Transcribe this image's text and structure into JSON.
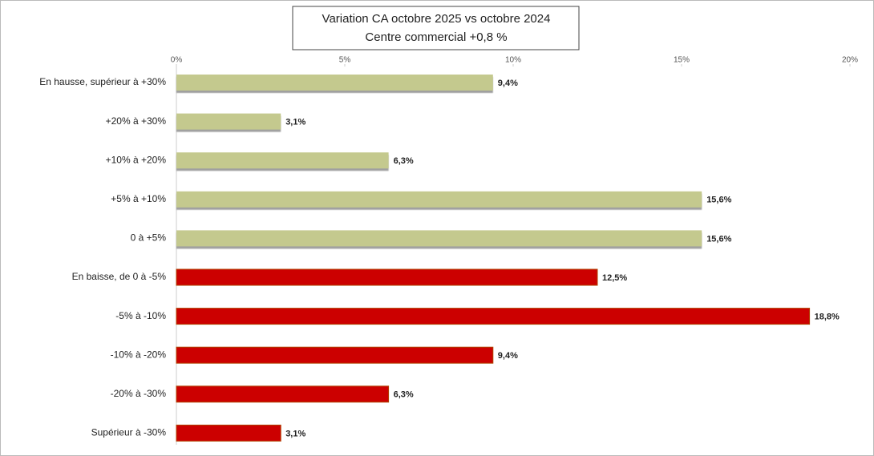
{
  "chart_data": {
    "type": "barh",
    "title": "Variation CA octobre 2025 vs octobre 2024",
    "subtitle": "Centre commercial   +0,8 %",
    "categories": [
      "En hausse, supérieur à +30%",
      "+20% à +30%",
      "+10% à +20%",
      "+5% à +10%",
      "0 à +5%",
      "En baisse, de 0 à -5%",
      "-5% à -10%",
      "-10% à -20%",
      "-20% à -30%",
      "Supérieur à -30%"
    ],
    "values": [
      9.4,
      3.1,
      6.3,
      15.6,
      15.6,
      12.5,
      18.8,
      9.4,
      6.3,
      3.1
    ],
    "value_labels": [
      "9,4%",
      "3,1%",
      "6,3%",
      "15,6%",
      "15,6%",
      "12,5%",
      "18,8%",
      "9,4%",
      "6,3%",
      "3,1%"
    ],
    "colors": [
      "#c4c98e",
      "#c4c98e",
      "#c4c98e",
      "#c4c98e",
      "#c4c98e",
      "#cc0000",
      "#cc0000",
      "#cc0000",
      "#cc0000",
      "#cc0000"
    ],
    "xlim": [
      0,
      20
    ],
    "xticks": [
      {
        "value": 0,
        "label": "0%"
      },
      {
        "value": 5,
        "label": "5%"
      },
      {
        "value": 10,
        "label": "10%"
      },
      {
        "value": 15,
        "label": "15%"
      },
      {
        "value": 20,
        "label": "20%"
      }
    ]
  }
}
